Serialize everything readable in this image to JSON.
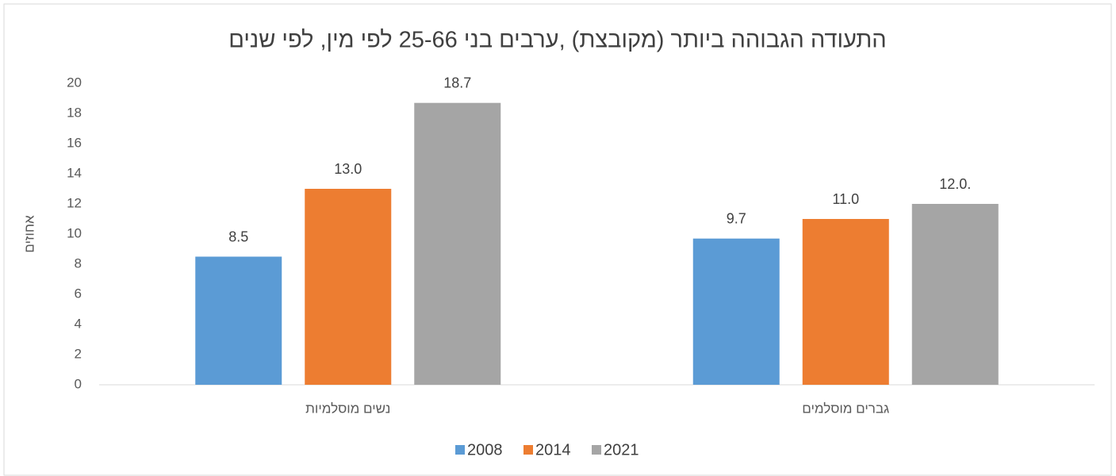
{
  "chart_data": {
    "type": "bar",
    "title": "התעודה הגבוהה ביותר (מקובצת) ,ערבים בני 25-66 לפי מין, לפי שנים",
    "y_label": "אחוזים",
    "categories": [
      "נשים מוסלמיות",
      "גברים מוסלמים"
    ],
    "series": [
      {
        "name": "2008",
        "color": "#5b9bd5",
        "values": [
          8.5,
          9.7
        ],
        "value_labels": [
          "8.5",
          "9.7"
        ]
      },
      {
        "name": "2014",
        "color": "#ed7d31",
        "values": [
          13,
          11
        ],
        "value_labels": [
          "13.0",
          "11.0"
        ]
      },
      {
        "name": "2021",
        "color": "#a5a5a5",
        "values": [
          18.7,
          12
        ],
        "value_labels": [
          "18.7",
          "12.0."
        ]
      }
    ],
    "ylim": [
      0,
      20
    ],
    "yticks": [
      0,
      2,
      4,
      6,
      8,
      10,
      12,
      14,
      16,
      18,
      20
    ],
    "grid": false,
    "legend": "bottom"
  }
}
